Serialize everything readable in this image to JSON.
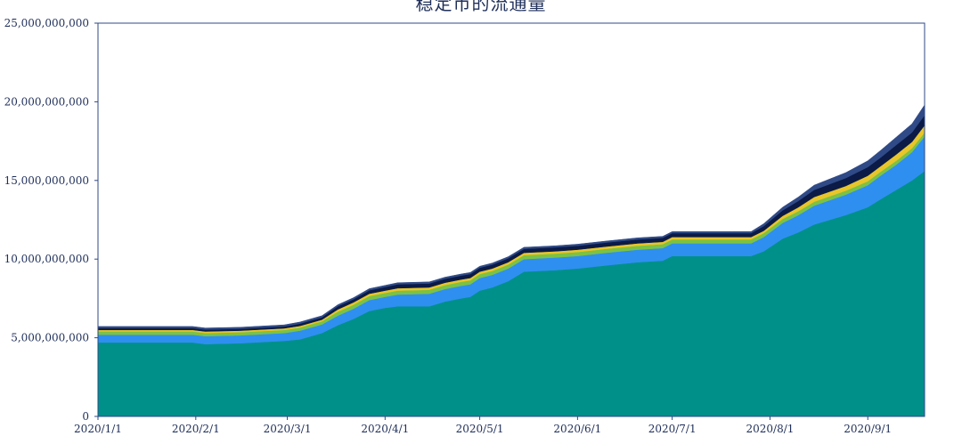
{
  "chart_data": {
    "type": "area",
    "stacked": true,
    "title": "稳定币的流通量",
    "xlabel": "",
    "ylabel": "",
    "x_range": [
      "2020-01-01",
      "2020-09-19"
    ],
    "ylim": [
      0,
      25000000000
    ],
    "y_ticks": [
      0,
      5000000000,
      10000000000,
      15000000000,
      20000000000,
      25000000000
    ],
    "y_tick_labels": [
      "0",
      "5,000,000,000",
      "10,000,000,000",
      "15,000,000,000",
      "20,000,000,000",
      "25,000,000,000"
    ],
    "x_ticks": [
      "2020-01-01",
      "2020-02-01",
      "2020-03-01",
      "2020-04-01",
      "2020-05-01",
      "2020-06-01",
      "2020-07-01",
      "2020-08-01",
      "2020-09-01"
    ],
    "x_tick_labels": [
      "2020/1/1",
      "2020/2/1",
      "2020/3/1",
      "2020/4/1",
      "2020/5/1",
      "2020/6/1",
      "2020/7/1",
      "2020/8/1",
      "2020/9/1"
    ],
    "grid": false,
    "legend": "none",
    "x": [
      "2020-01-01",
      "2020-01-15",
      "2020-01-31",
      "2020-02-04",
      "2020-02-15",
      "2020-02-29",
      "2020-03-05",
      "2020-03-12",
      "2020-03-17",
      "2020-03-22",
      "2020-03-27",
      "2020-04-01",
      "2020-04-05",
      "2020-04-15",
      "2020-04-20",
      "2020-04-25",
      "2020-04-28",
      "2020-05-01",
      "2020-05-05",
      "2020-05-10",
      "2020-05-15",
      "2020-05-25",
      "2020-06-01",
      "2020-06-10",
      "2020-06-20",
      "2020-06-28",
      "2020-07-01",
      "2020-07-10",
      "2020-07-20",
      "2020-07-26",
      "2020-07-30",
      "2020-08-05",
      "2020-08-10",
      "2020-08-15",
      "2020-08-25",
      "2020-09-01",
      "2020-09-05",
      "2020-09-10",
      "2020-09-15",
      "2020-09-19"
    ],
    "series": [
      {
        "color": "#00908a",
        "values": [
          4700000000,
          4700000000,
          4700000000,
          4600000000,
          4650000000,
          4800000000,
          4900000000,
          5300000000,
          5800000000,
          6200000000,
          6700000000,
          6900000000,
          7000000000,
          7000000000,
          7300000000,
          7500000000,
          7600000000,
          8000000000,
          8200000000,
          8600000000,
          9200000000,
          9300000000,
          9400000000,
          9600000000,
          9800000000,
          9900000000,
          10200000000,
          10200000000,
          10200000000,
          10200000000,
          10500000000,
          11300000000,
          11700000000,
          12200000000,
          12800000000,
          13300000000,
          13800000000,
          14400000000,
          15000000000,
          15600000000
        ]
      },
      {
        "color": "#2e8ff0",
        "values": [
          500000000,
          500000000,
          500000000,
          500000000,
          500000000,
          500000000,
          550000000,
          550000000,
          600000000,
          650000000,
          700000000,
          700000000,
          750000000,
          800000000,
          800000000,
          800000000,
          800000000,
          800000000,
          800000000,
          800000000,
          800000000,
          800000000,
          800000000,
          800000000,
          800000000,
          800000000,
          800000000,
          800000000,
          800000000,
          800000000,
          900000000,
          1000000000,
          1100000000,
          1200000000,
          1300000000,
          1400000000,
          1500000000,
          1600000000,
          1800000000,
          2200000000
        ]
      },
      {
        "color": "#7dc242",
        "values": [
          200000000,
          200000000,
          200000000,
          200000000,
          200000000,
          200000000,
          200000000,
          200000000,
          250000000,
          250000000,
          250000000,
          250000000,
          250000000,
          250000000,
          250000000,
          250000000,
          250000000,
          250000000,
          250000000,
          250000000,
          250000000,
          250000000,
          250000000,
          250000000,
          250000000,
          250000000,
          250000000,
          250000000,
          250000000,
          250000000,
          250000000,
          250000000,
          250000000,
          250000000,
          250000000,
          250000000,
          250000000,
          250000000,
          250000000,
          250000000
        ]
      },
      {
        "color": "#e8c52a",
        "values": [
          100000000,
          100000000,
          100000000,
          100000000,
          100000000,
          100000000,
          100000000,
          100000000,
          150000000,
          150000000,
          150000000,
          150000000,
          150000000,
          150000000,
          150000000,
          150000000,
          150000000,
          150000000,
          150000000,
          150000000,
          150000000,
          150000000,
          150000000,
          150000000,
          150000000,
          150000000,
          150000000,
          150000000,
          150000000,
          150000000,
          150000000,
          200000000,
          250000000,
          300000000,
          300000000,
          350000000,
          350000000,
          400000000,
          400000000,
          450000000
        ]
      },
      {
        "color": "#0b1a46",
        "values": [
          120000000,
          120000000,
          120000000,
          120000000,
          120000000,
          120000000,
          150000000,
          150000000,
          200000000,
          200000000,
          220000000,
          230000000,
          250000000,
          250000000,
          250000000,
          250000000,
          250000000,
          250000000,
          250000000,
          250000000,
          250000000,
          250000000,
          250000000,
          250000000,
          250000000,
          250000000,
          250000000,
          250000000,
          250000000,
          250000000,
          300000000,
          350000000,
          400000000,
          450000000,
          500000000,
          550000000,
          550000000,
          600000000,
          600000000,
          650000000
        ]
      },
      {
        "color": "#2f4a86",
        "values": [
          100000000,
          100000000,
          100000000,
          100000000,
          100000000,
          100000000,
          100000000,
          100000000,
          100000000,
          100000000,
          100000000,
          100000000,
          100000000,
          100000000,
          100000000,
          100000000,
          100000000,
          100000000,
          100000000,
          100000000,
          100000000,
          100000000,
          100000000,
          100000000,
          100000000,
          100000000,
          100000000,
          100000000,
          100000000,
          100000000,
          150000000,
          200000000,
          250000000,
          300000000,
          350000000,
          400000000,
          450000000,
          500000000,
          550000000,
          650000000
        ]
      }
    ]
  }
}
